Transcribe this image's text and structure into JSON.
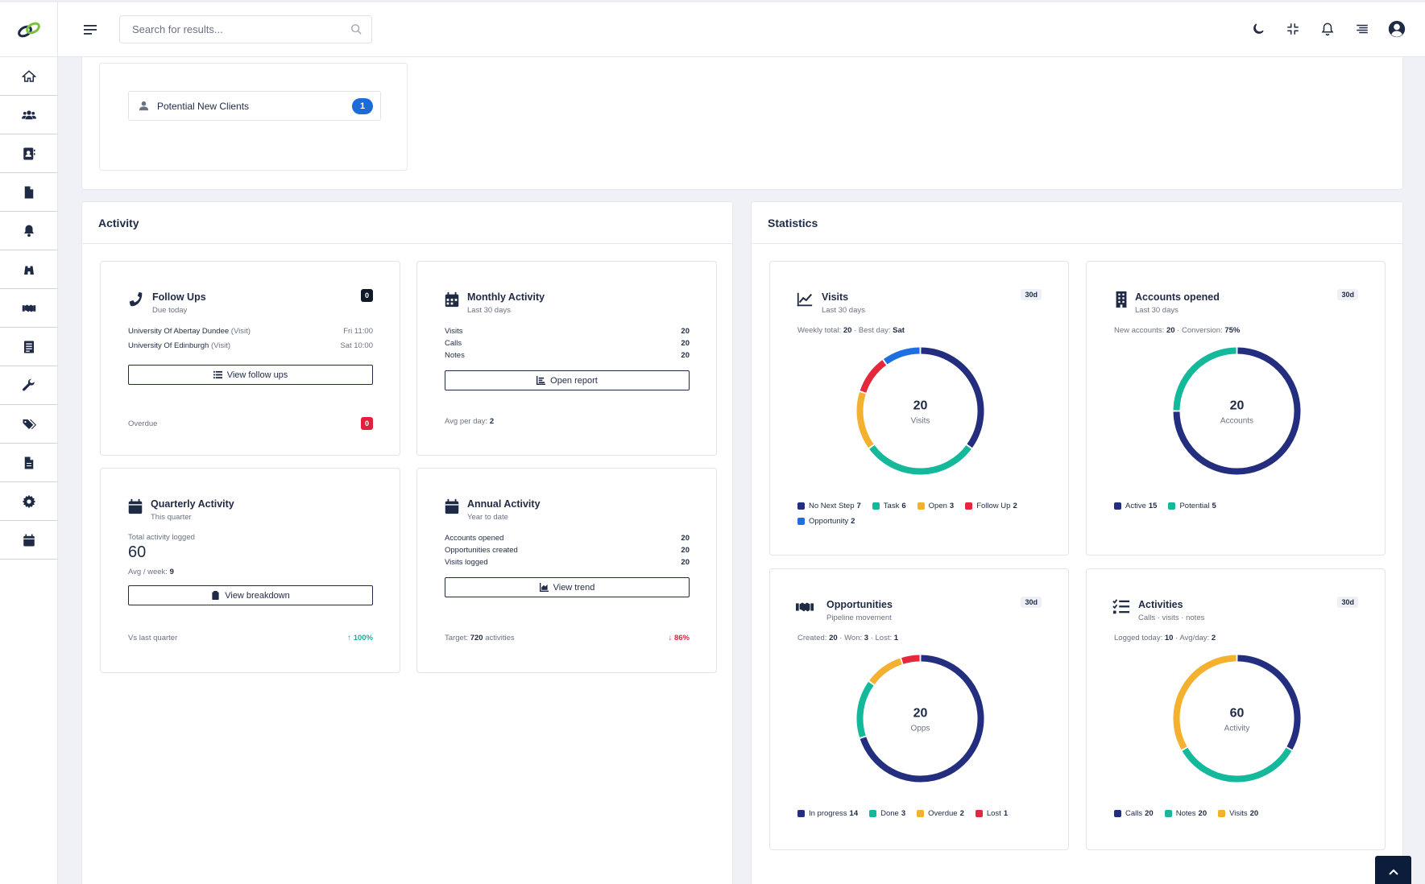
{
  "search": {
    "placeholder": "Search for results..."
  },
  "sidebar": {
    "items": [
      "home-icon",
      "users-icon",
      "contacts-icon",
      "file-icon",
      "bell-icon",
      "binoculars-icon",
      "handshake-icon",
      "list-doc-icon",
      "wrench-icon",
      "tags-icon",
      "document-icon",
      "gear-icon",
      "calendar-icon"
    ]
  },
  "potential": {
    "label": "Potential New Clients",
    "count": "1"
  },
  "activity": {
    "title": "Activity",
    "follow": {
      "title": "Follow Ups",
      "sub": "Due today",
      "badge": "0",
      "rows": [
        {
          "name": "University Of Abertay Dundee",
          "type": "(Visit)",
          "time": "Fri 11:00"
        },
        {
          "name": "University Of Edinburgh",
          "type": "(Visit)",
          "time": "Sat 10:00"
        }
      ],
      "button": "View follow ups",
      "foot": "Overdue",
      "overdue": "0"
    },
    "monthly": {
      "title": "Monthly Activity",
      "sub": "Last 30 days",
      "rows": [
        {
          "k": "Visits",
          "v": "20"
        },
        {
          "k": "Calls",
          "v": "20"
        },
        {
          "k": "Notes",
          "v": "20"
        }
      ],
      "button": "Open report",
      "foot_label": "Avg per day:",
      "foot_val": "2"
    },
    "quarterly": {
      "title": "Quarterly Activity",
      "sub": "This quarter",
      "total_label": "Total activity logged",
      "total": "60",
      "avg_label": "Avg / week:",
      "avg": "9",
      "button": "View breakdown",
      "foot": "Vs last quarter",
      "change": "100%"
    },
    "annual": {
      "title": "Annual Activity",
      "sub": "Year to date",
      "rows": [
        {
          "k": "Accounts opened",
          "v": "20"
        },
        {
          "k": "Opportunities created",
          "v": "20"
        },
        {
          "k": "Visits logged",
          "v": "20"
        }
      ],
      "button": "View trend",
      "foot_label": "Target:",
      "foot_val": "720",
      "foot_suffix": "activities",
      "change": "86%"
    }
  },
  "statistics": {
    "title": "Statistics",
    "visits": {
      "title": "Visits",
      "sub": "Last 30 days",
      "tag": "30d",
      "meta_a": "Weekly total:",
      "meta_a_val": "20",
      "meta_b": "Best day:",
      "meta_b_val": "Sat",
      "center_value": "20",
      "center_label": "Visits",
      "segments": [
        {
          "name": "No Next Step",
          "value": 7,
          "color": "#232f7e"
        },
        {
          "name": "Task",
          "value": 6,
          "color": "#14b89b"
        },
        {
          "name": "Open",
          "value": 3,
          "color": "#f3b12f"
        },
        {
          "name": "Follow Up",
          "value": 2,
          "color": "#e5263d"
        },
        {
          "name": "Opportunity",
          "value": 2,
          "color": "#1e6fe0"
        }
      ]
    },
    "accounts": {
      "title": "Accounts opened",
      "sub": "Last 30 days",
      "tag": "30d",
      "meta_a": "New accounts:",
      "meta_a_val": "20",
      "meta_b": "Conversion:",
      "meta_b_val": "75%",
      "center_value": "20",
      "center_label": "Accounts",
      "segments": [
        {
          "name": "Active",
          "value": 15,
          "color": "#232f7e"
        },
        {
          "name": "Potential",
          "value": 5,
          "color": "#14b89b"
        }
      ]
    },
    "opps": {
      "title": "Opportunities",
      "sub": "Pipeline movement",
      "tag": "30d",
      "meta_a": "Created:",
      "meta_a_val": "20",
      "meta_b": "Won:",
      "meta_b_val": "3",
      "meta_c": "Lost:",
      "meta_c_val": "1",
      "center_value": "20",
      "center_label": "Opps",
      "segments": [
        {
          "name": "In progress",
          "value": 14,
          "color": "#232f7e"
        },
        {
          "name": "Done",
          "value": 3,
          "color": "#14b89b"
        },
        {
          "name": "Overdue",
          "value": 2,
          "color": "#f3b12f"
        },
        {
          "name": "Lost",
          "value": 1,
          "color": "#e5263d"
        }
      ]
    },
    "activities": {
      "title": "Activities",
      "sub": "Calls · visits · notes",
      "tag": "30d",
      "meta_a": "Logged today:",
      "meta_a_val": "10",
      "meta_b": "Avg/day:",
      "meta_b_val": "2",
      "center_value": "60",
      "center_label": "Activity",
      "segments": [
        {
          "name": "Calls",
          "value": 20,
          "color": "#232f7e"
        },
        {
          "name": "Notes",
          "value": 20,
          "color": "#14b89b"
        },
        {
          "name": "Visits",
          "value": 20,
          "color": "#f3b12f"
        }
      ]
    }
  }
}
